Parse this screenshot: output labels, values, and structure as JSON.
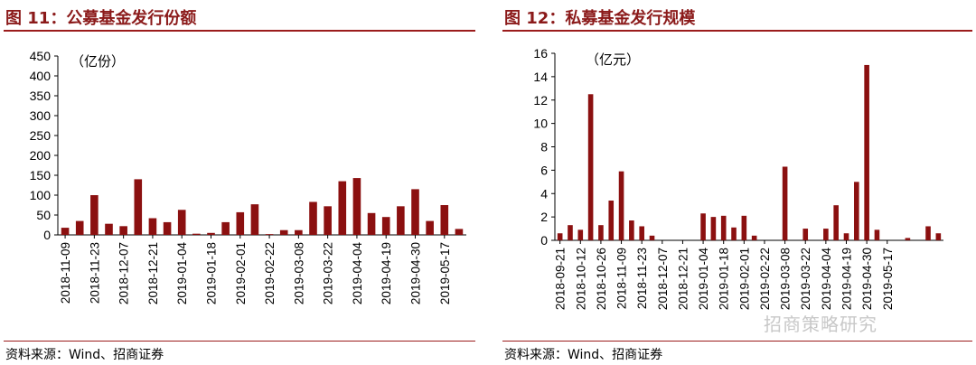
{
  "charts": [
    {
      "figure_title": "图 11：公募基金发行份额",
      "source": "资料来源：Wind、招商证券"
    },
    {
      "figure_title": "图 12：私募基金发行规模",
      "source": "资料来源：Wind、招商证券"
    }
  ],
  "watermark": "招商策略研究",
  "colors": {
    "bar": "#8b1010",
    "title": "#8b1a1a",
    "rule": "#9b1c1c"
  },
  "chart_data": [
    {
      "type": "bar",
      "title": "公募基金发行份额",
      "unit": "（亿份）",
      "ylim": [
        0,
        450
      ],
      "yticks": [
        0,
        50,
        100,
        150,
        200,
        250,
        300,
        350,
        400,
        450
      ],
      "xtick_labels": [
        "2018-11-09",
        "2018-11-23",
        "2018-12-07",
        "2018-12-21",
        "2019-01-04",
        "2019-01-18",
        "2019-02-01",
        "2019-02-22",
        "2019-03-08",
        "2019-03-22",
        "2019-04-04",
        "2019-04-19",
        "2019-04-30",
        "2019-05-17"
      ],
      "values": [
        18,
        35,
        100,
        28,
        22,
        140,
        42,
        32,
        63,
        3,
        5,
        32,
        57,
        77,
        2,
        12,
        12,
        83,
        72,
        135,
        143,
        55,
        45,
        72,
        115,
        35,
        75,
        15
      ],
      "grid": false
    },
    {
      "type": "bar",
      "title": "私募基金发行规模",
      "unit": "（亿元）",
      "ylim": [
        0,
        16
      ],
      "yticks": [
        0,
        2,
        4,
        6,
        8,
        10,
        12,
        14,
        16
      ],
      "xtick_labels": [
        "2018-09-21",
        "2018-10-12",
        "2018-10-26",
        "2018-11-09",
        "2018-11-23",
        "2018-12-07",
        "2018-12-21",
        "2019-01-04",
        "2019-01-18",
        "2019-02-01",
        "2019-02-22",
        "2019-03-08",
        "2019-03-22",
        "2019-04-04",
        "2019-04-19",
        "2019-04-30",
        "2019-05-17"
      ],
      "values": [
        0.6,
        1.3,
        0.9,
        12.5,
        1.3,
        3.4,
        5.9,
        1.7,
        1.2,
        0.4,
        0,
        0,
        0,
        0,
        2.3,
        2.0,
        2.1,
        1.1,
        2.1,
        0.4,
        0,
        0,
        6.3,
        0,
        1.0,
        0,
        1.0,
        3.0,
        0.6,
        5.0,
        15.0,
        0.9,
        0,
        0,
        0.2,
        0,
        1.2,
        0.6
      ],
      "grid": false
    }
  ]
}
